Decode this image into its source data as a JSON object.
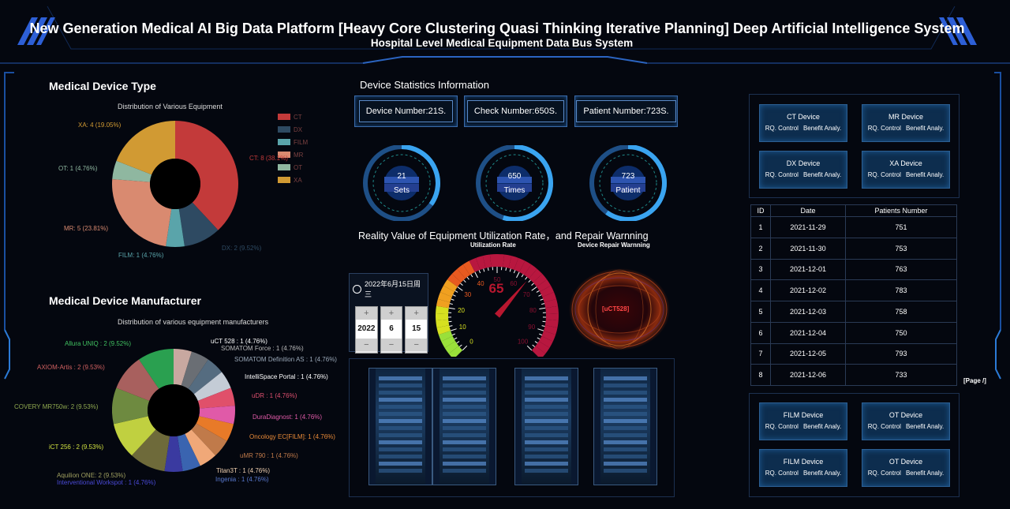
{
  "header": {
    "title": "New Generation Medical AI Big Data Platform [Heavy Core Clustering Quasi Thinking Iterative Planning] Deep Artificial Intelligence System",
    "subtitle": "Hospital Level Medical Equipment Data Bus System"
  },
  "device_type": {
    "heading": "Medical Device Type",
    "chart_title": "Distribution of Various Equipment",
    "legend": [
      "CT",
      "DX",
      "FILM",
      "MR",
      "OT",
      "XA"
    ],
    "labels": [
      "CT: 8 (38.1%)",
      "DX: 2 (9.52%)",
      "FILM: 1 (4.76%)",
      "MR: 5 (23.81%)",
      "OT: 1 (4.76%)",
      "XA: 4 (19.05%)"
    ]
  },
  "manufacturer": {
    "heading": "Medical Device Manufacturer",
    "chart_title": "Distribution of various equipment manufacturers",
    "labels": [
      "uCT 528 : 1 (4.76%)",
      "SOMATOM Force : 1 (4.76%)",
      "SOMATOM Definition AS : 1 (4.76%)",
      "IntelliSpace Portal : 1 (4.76%)",
      "uDR : 1 (4.76%)",
      "DuraDiagnost: 1 (4.76%)",
      "Oncology EC[FILM]: 1 (4.76%)",
      "uMR 790 : 1 (4.76%)",
      "Titan3T : 1 (4.76%)",
      "Ingenia : 1 (4.76%)",
      "Interventional Workspot : 1 (4.76%)",
      "Aquilion ONE: 2 (9.53%)",
      "iCT 256 : 2 (9.53%)",
      "COVERY MR750w: 2 (9.53%)",
      "AXIOM-Artis : 2 (9.53%)",
      "Allura UNIQ : 2 (9.52%)"
    ]
  },
  "chart_data": [
    {
      "type": "pie",
      "title": "Distribution of Various Equipment",
      "categories": [
        "CT",
        "DX",
        "FILM",
        "MR",
        "OT",
        "XA"
      ],
      "values": [
        8,
        2,
        1,
        5,
        1,
        4
      ],
      "colors": [
        "#c33a3a",
        "#2e4a62",
        "#5aa4aa",
        "#d98a70",
        "#8fb7a0",
        "#d19a33"
      ]
    },
    {
      "type": "pie",
      "title": "Distribution of various equipment manufacturers",
      "categories": [
        "uCT 528",
        "SOMATOM Force",
        "SOMATOM Definition AS",
        "IntelliSpace Portal",
        "uDR",
        "DuraDiagnost",
        "Oncology EC[FILM]",
        "uMR 790",
        "Titan3T",
        "Ingenia",
        "Interventional Workspot",
        "Aquilion ONE",
        "iCT 256",
        "COVERY MR750w",
        "AXIOM-Artis",
        "Allura UNIQ"
      ],
      "values": [
        1,
        1,
        1,
        1,
        1,
        1,
        1,
        1,
        1,
        1,
        1,
        2,
        2,
        2,
        2,
        2
      ],
      "colors": [
        "#c8a8a0",
        "#6a6e74",
        "#556c80",
        "#c4ccd6",
        "#e0506a",
        "#e05aa8",
        "#e87a28",
        "#c07a4a",
        "#f0a878",
        "#3a64b0",
        "#3a3aa0",
        "#6e6a3a",
        "#c0d040",
        "#6e8a40",
        "#a8605e",
        "#2aa050"
      ]
    }
  ],
  "stats": {
    "heading": "Device Statistics Information",
    "boxes": [
      "Device Number:21S.",
      "Check Number:650S.",
      "Patient Number:723S."
    ],
    "gauges": [
      {
        "value": "21",
        "unit": "Sets",
        "level": 0.35
      },
      {
        "value": "650",
        "unit": "Times",
        "level": 0.55
      },
      {
        "value": "723",
        "unit": "Patient",
        "level": 0.6
      }
    ]
  },
  "utilization": {
    "heading": "Reality Value of Equipment Utilization Rate，and Repair Warnning",
    "gauge_title": "Utilization Rate",
    "value": "65",
    "ticks": [
      "0",
      "10",
      "20",
      "30",
      "40",
      "50",
      "60",
      "70",
      "80",
      "90",
      "100"
    ],
    "repair_title": "Device Repair Warnning",
    "repair_label": "[uCT528]"
  },
  "date_picker": {
    "header": "2022年6月15日周三",
    "year": "2022",
    "month": "6",
    "day": "15",
    "plus": "+",
    "minus": "−"
  },
  "devices_top": [
    {
      "name": "CT Device",
      "rq": "RQ. Control",
      "ben": "Benefit Analy."
    },
    {
      "name": "MR Device",
      "rq": "RQ. Control",
      "ben": "Benefit Analy."
    },
    {
      "name": "DX Device",
      "rq": "RQ. Control",
      "ben": "Benefit Analy."
    },
    {
      "name": "XA Device",
      "rq": "RQ. Control",
      "ben": "Benefit Analy."
    }
  ],
  "devices_bottom": [
    {
      "name": "FILM Device",
      "rq": "RQ. Control",
      "ben": "Benefit Analy."
    },
    {
      "name": "OT Device",
      "rq": "RQ. Control",
      "ben": "Benefit Analy."
    },
    {
      "name": "FILM Device",
      "rq": "RQ. Control",
      "ben": "Benefit Analy."
    },
    {
      "name": "OT Device",
      "rq": "RQ. Control",
      "ben": "Benefit Analy."
    }
  ],
  "table": {
    "headers": [
      "ID",
      "Date",
      "Patients Number"
    ],
    "rows": [
      [
        "1",
        "2021-11-29",
        "751"
      ],
      [
        "2",
        "2021-11-30",
        "753"
      ],
      [
        "3",
        "2021-12-01",
        "763"
      ],
      [
        "4",
        "2021-12-02",
        "783"
      ],
      [
        "5",
        "2021-12-03",
        "758"
      ],
      [
        "6",
        "2021-12-04",
        "750"
      ],
      [
        "7",
        "2021-12-05",
        "793"
      ],
      [
        "8",
        "2021-12-06",
        "733"
      ]
    ],
    "pager": "[Page /]"
  }
}
